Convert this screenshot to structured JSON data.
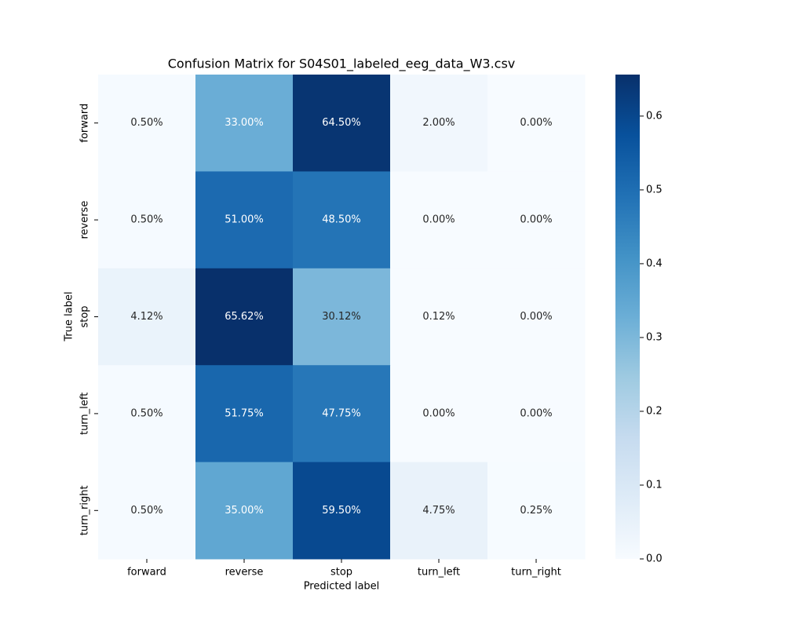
{
  "chart_data": {
    "type": "heatmap",
    "title": "Confusion Matrix for S04S01_labeled_eeg_data_W3.csv",
    "x_label": "Predicted label",
    "y_label": "True label",
    "x_categories": [
      "forward",
      "reverse",
      "stop",
      "turn_left",
      "turn_right"
    ],
    "y_categories": [
      "forward",
      "reverse",
      "stop",
      "turn_left",
      "turn_right"
    ],
    "values": [
      [
        0.005,
        0.33,
        0.645,
        0.02,
        0.0
      ],
      [
        0.005,
        0.51,
        0.485,
        0.0,
        0.0
      ],
      [
        0.04125,
        0.65625,
        0.30125,
        0.00125,
        0.0
      ],
      [
        0.005,
        0.5175,
        0.4775,
        0.0,
        0.0
      ],
      [
        0.005,
        0.35,
        0.595,
        0.0475,
        0.0025
      ]
    ],
    "value_labels": [
      [
        "0.50%",
        "33.00%",
        "64.50%",
        "2.00%",
        "0.00%"
      ],
      [
        "0.50%",
        "51.00%",
        "48.50%",
        "0.00%",
        "0.00%"
      ],
      [
        "4.12%",
        "65.62%",
        "30.12%",
        "0.12%",
        "0.00%"
      ],
      [
        "0.50%",
        "51.75%",
        "47.75%",
        "0.00%",
        "0.00%"
      ],
      [
        "0.50%",
        "35.00%",
        "59.50%",
        "4.75%",
        "0.25%"
      ]
    ],
    "cmap": "Blues",
    "zlim": [
      0,
      0.65625
    ],
    "zticks": [
      {
        "value": 0,
        "label": "0.0"
      },
      0.1,
      0.2,
      0.3,
      0.4,
      0.5,
      0.6
    ]
  }
}
